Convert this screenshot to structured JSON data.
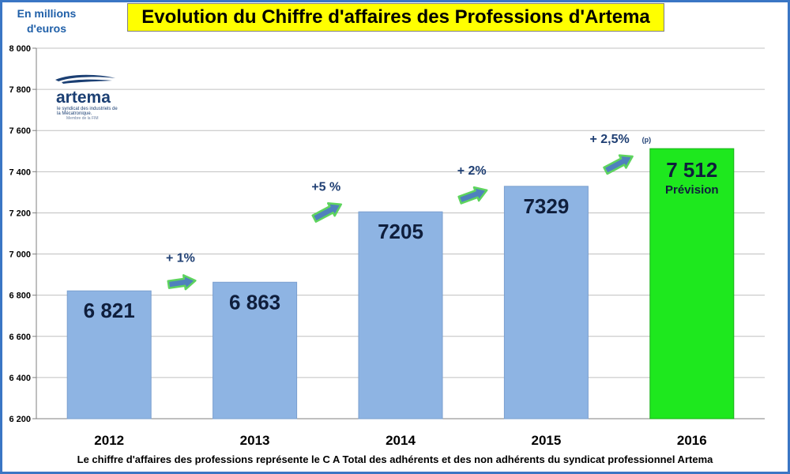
{
  "title": "Evolution du Chiffre d'affaires des Professions d'Artema",
  "unit_label": "En millions d'euros",
  "footer_note": "Le  chiffre d'affaires des professions représente le C A Total des adhérents et des non adhérents  du syndicat professionnel Artema",
  "logo": {
    "word": "artema",
    "tagline": "le syndicat des industriels de la Mécatronique.",
    "member": "Membre de la FIM"
  },
  "colors": {
    "bar": "#8eb4e3",
    "forecast_bar": "#1ee81e",
    "arrow_fill": "#4f81bd",
    "arrow_border": "#5ed45e",
    "label_dark": "#0f1e3c",
    "growth_text": "#1f3f73",
    "grid": "#c0c0c0",
    "title_bg": "#ffff00"
  },
  "chart_data": {
    "type": "bar",
    "title": "Evolution du Chiffre d'affaires des Professions d'Artema",
    "ylabel": "En millions d'euros",
    "xlabel": "",
    "ylim": [
      6200,
      8000
    ],
    "yticks": [
      6200,
      6400,
      6600,
      6800,
      7000,
      7200,
      7400,
      7600,
      7800,
      8000
    ],
    "ytick_labels": [
      "6 200",
      "6 400",
      "6 600",
      "6 800",
      "7 000",
      "7 200",
      "7 400",
      "7 600",
      "7 800",
      "8 000"
    ],
    "grid": true,
    "categories": [
      "2012",
      "2013",
      "2014",
      "2015",
      "2016"
    ],
    "values": [
      6821,
      6863,
      7205,
      7329,
      7512
    ],
    "value_labels": [
      "6 821",
      "6 863",
      "7205",
      "7329",
      "7 512"
    ],
    "forecast_index": 4,
    "forecast_label": "Prévision",
    "growth_labels": [
      "+ 1%",
      "+5 %",
      "+ 2%",
      "+ 2,5%"
    ],
    "growth_note": "(p)"
  }
}
